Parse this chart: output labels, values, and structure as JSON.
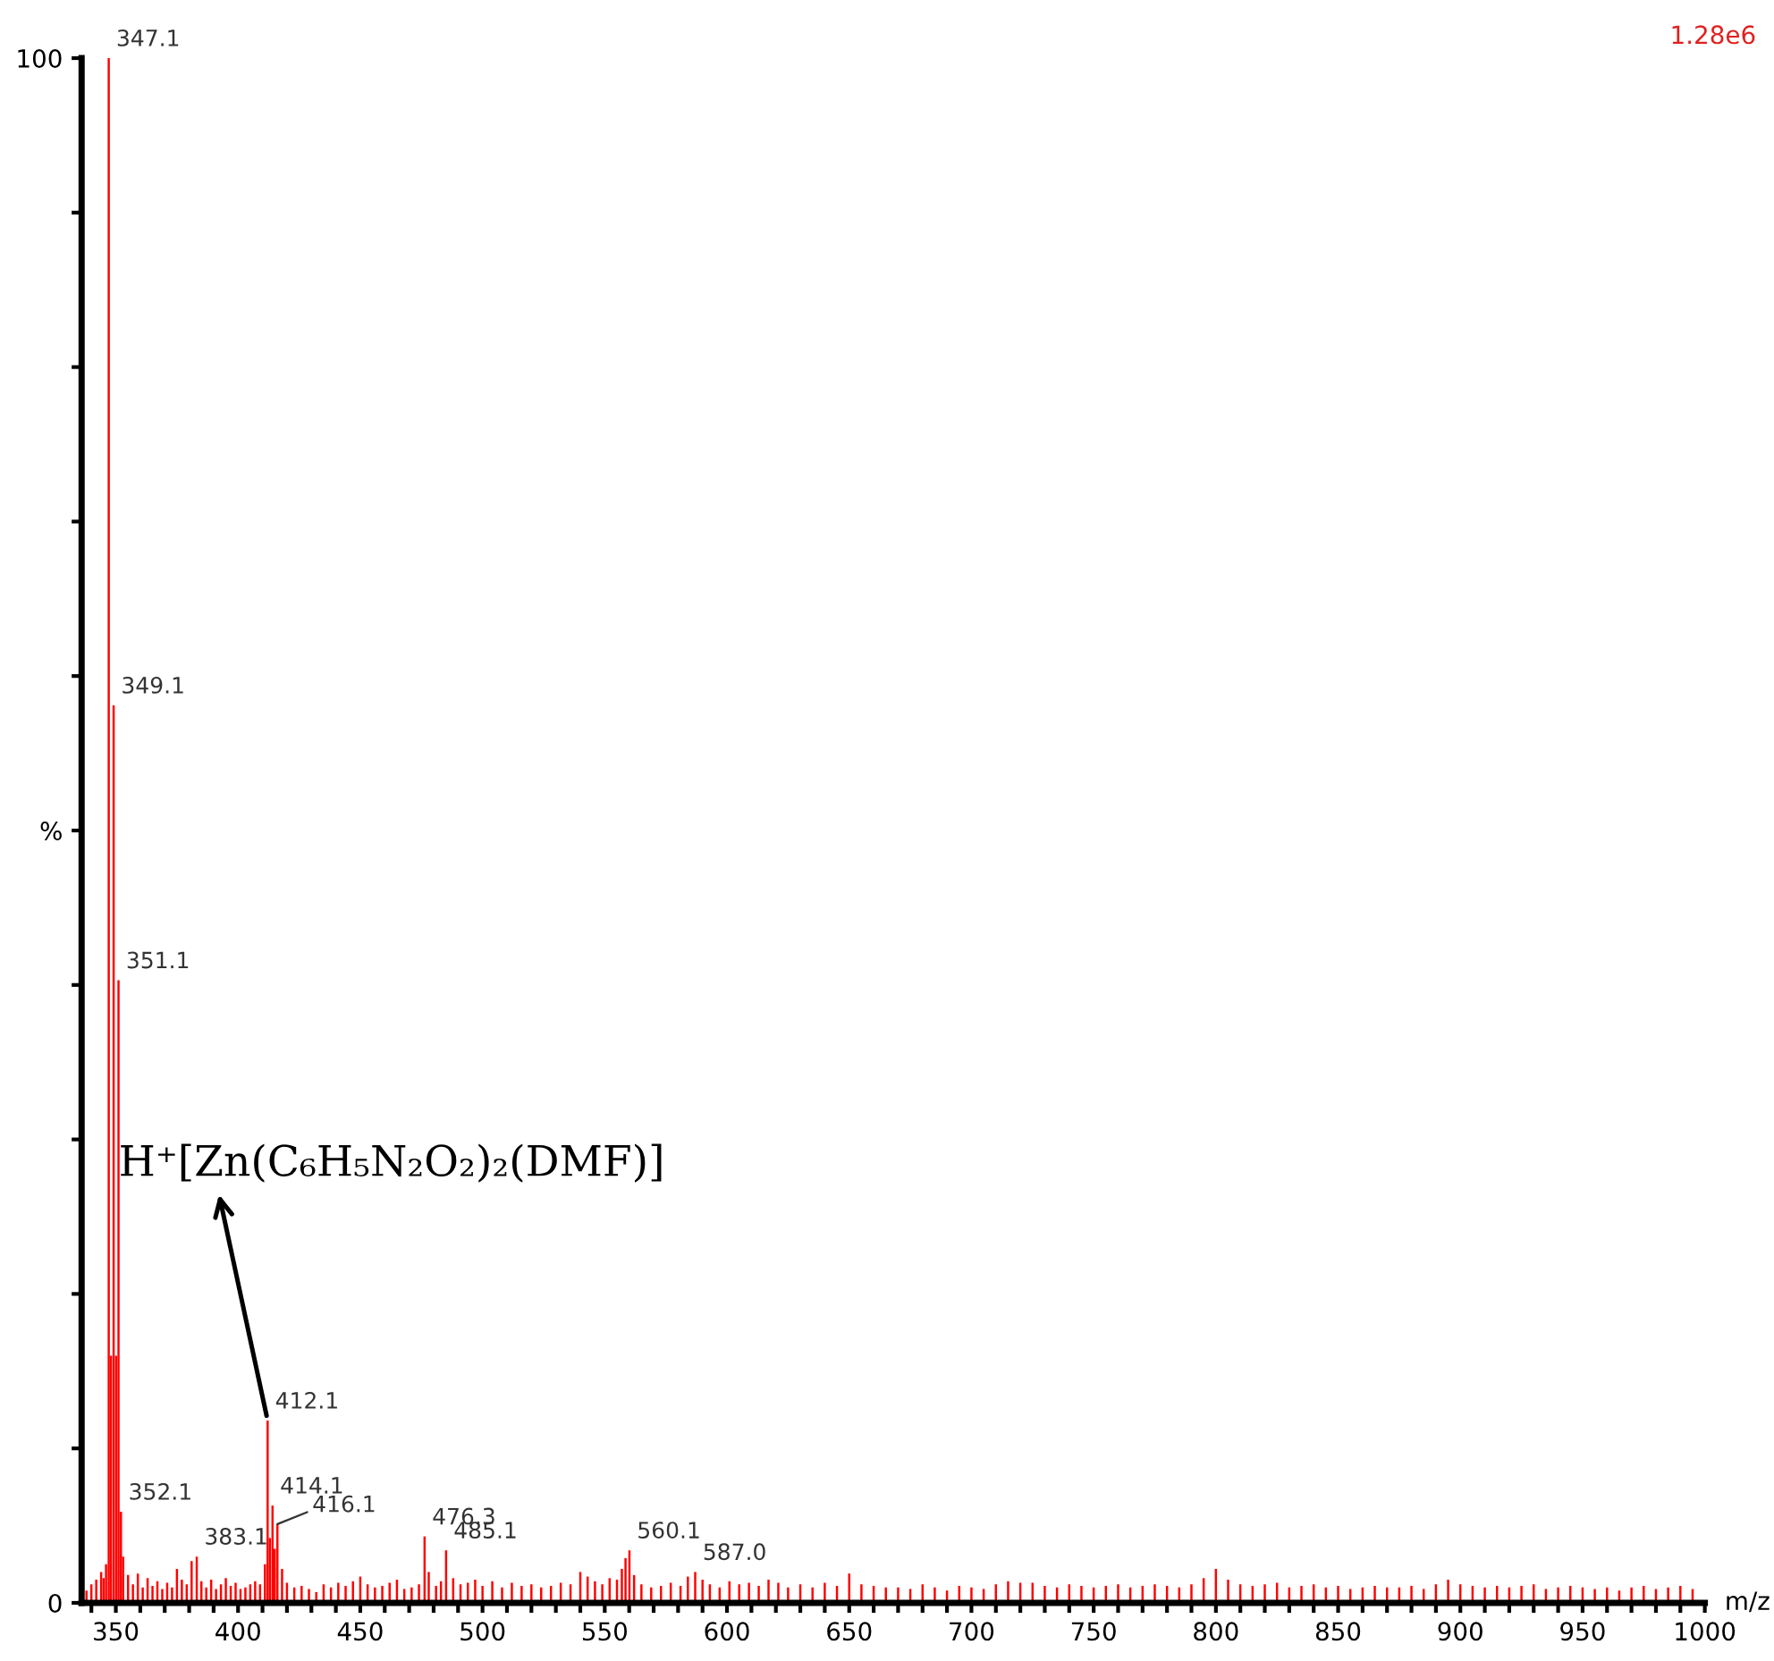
{
  "chart_data": {
    "type": "bar",
    "xlabel": "m/z",
    "x": [
      338,
      340,
      342,
      344,
      345,
      346,
      347.1,
      348,
      349.1,
      350.1,
      351.1,
      352.1,
      353,
      355,
      357,
      359,
      361,
      363,
      365,
      367,
      369,
      371,
      373,
      375,
      377,
      379,
      381,
      383.1,
      385,
      387,
      389,
      391,
      393,
      395,
      397,
      399,
      401,
      403,
      405,
      407,
      409,
      411,
      412.1,
      413,
      414.1,
      415,
      416.1,
      418,
      420,
      423,
      426,
      429,
      432,
      435,
      438,
      441,
      444,
      447,
      450,
      453,
      456,
      459,
      462,
      465,
      468,
      471,
      474,
      476.3,
      478,
      481,
      483,
      485.1,
      488,
      491,
      494,
      497,
      500,
      504,
      508,
      512,
      516,
      520,
      524,
      528,
      532,
      536,
      540,
      543,
      546,
      549,
      552,
      555,
      557,
      558.5,
      560.1,
      562,
      565,
      569,
      573,
      577,
      581,
      584,
      587.0,
      590,
      593,
      597,
      601,
      605,
      609,
      613,
      617,
      621,
      625,
      630,
      635,
      640,
      645,
      650,
      655,
      660,
      665,
      670,
      675,
      680,
      685,
      690,
      695,
      700,
      705,
      710,
      715,
      720,
      725,
      730,
      735,
      740,
      745,
      750,
      755,
      760,
      765,
      770,
      775,
      780,
      785,
      790,
      795,
      800,
      805,
      810,
      815,
      820,
      825,
      830,
      835,
      840,
      845,
      850,
      855,
      860,
      865,
      870,
      875,
      880,
      885,
      890,
      895,
      900,
      905,
      910,
      915,
      920,
      925,
      930,
      935,
      940,
      945,
      950,
      955,
      960,
      965,
      970,
      975,
      980,
      985,
      990,
      995
    ],
    "values": [
      0.8,
      1.2,
      1.5,
      2.0,
      1.6,
      2.5,
      100,
      16,
      58.1,
      16,
      40.3,
      5.9,
      3.0,
      1.8,
      1.2,
      1.9,
      1.0,
      1.6,
      1.1,
      1.4,
      0.9,
      1.3,
      1.0,
      2.2,
      1.5,
      1.2,
      2.7,
      3.0,
      1.4,
      1.0,
      1.5,
      0.9,
      1.2,
      1.6,
      1.1,
      1.3,
      0.9,
      1.0,
      1.2,
      1.4,
      1.2,
      2.5,
      11.8,
      4.2,
      6.3,
      3.5,
      5.1,
      2.2,
      1.3,
      1.0,
      1.1,
      0.9,
      0.7,
      1.2,
      1.0,
      1.3,
      1.1,
      1.4,
      1.7,
      1.2,
      1.0,
      1.1,
      1.3,
      1.5,
      0.9,
      1.0,
      1.2,
      4.3,
      2.0,
      1.1,
      1.4,
      3.4,
      1.6,
      1.2,
      1.3,
      1.5,
      1.1,
      1.4,
      1.0,
      1.3,
      1.1,
      1.2,
      1.0,
      1.1,
      1.3,
      1.2,
      2.0,
      1.7,
      1.4,
      1.2,
      1.6,
      1.5,
      2.2,
      2.9,
      3.4,
      1.8,
      1.2,
      1.0,
      1.1,
      1.3,
      1.1,
      1.7,
      2.0,
      1.5,
      1.2,
      1.0,
      1.4,
      1.2,
      1.3,
      1.1,
      1.5,
      1.3,
      1.0,
      1.2,
      1.0,
      1.3,
      1.1,
      1.9,
      1.2,
      1.1,
      1.0,
      1.0,
      0.9,
      1.2,
      1.0,
      0.8,
      1.1,
      1.0,
      0.9,
      1.2,
      1.4,
      1.3,
      1.3,
      1.1,
      1.0,
      1.2,
      1.1,
      1.0,
      1.1,
      1.2,
      1.0,
      1.1,
      1.2,
      1.1,
      1.0,
      1.2,
      1.6,
      2.2,
      1.5,
      1.2,
      1.1,
      1.2,
      1.3,
      1.0,
      1.1,
      1.2,
      1.0,
      1.1,
      0.9,
      1.0,
      1.1,
      1.0,
      1.0,
      1.1,
      0.9,
      1.2,
      1.5,
      1.2,
      1.1,
      1.0,
      1.1,
      1.0,
      1.1,
      1.2,
      0.9,
      1.0,
      1.1,
      1.0,
      0.9,
      1.0,
      0.8,
      1.0,
      1.1,
      0.9,
      1.0,
      1.1,
      0.9
    ],
    "color": "#ff0000",
    "xlim": [
      336,
      1000
    ],
    "xticks": [
      {
        "value": 340,
        "label": null
      },
      350,
      {
        "value": 360,
        "label": null
      },
      {
        "value": 370,
        "label": null
      },
      {
        "value": 380,
        "label": null
      },
      {
        "value": 390,
        "label": null
      },
      400,
      {
        "value": 410,
        "label": null
      },
      {
        "value": 420,
        "label": null
      },
      {
        "value": 430,
        "label": null
      },
      {
        "value": 440,
        "label": null
      },
      450,
      {
        "value": 460,
        "label": null
      },
      {
        "value": 470,
        "label": null
      },
      {
        "value": 480,
        "label": null
      },
      {
        "value": 490,
        "label": null
      },
      500,
      {
        "value": 510,
        "label": null
      },
      {
        "value": 520,
        "label": null
      },
      {
        "value": 530,
        "label": null
      },
      {
        "value": 540,
        "label": null
      },
      550,
      {
        "value": 560,
        "label": null
      },
      {
        "value": 570,
        "label": null
      },
      {
        "value": 580,
        "label": null
      },
      {
        "value": 590,
        "label": null
      },
      600,
      {
        "value": 610,
        "label": null
      },
      {
        "value": 620,
        "label": null
      },
      {
        "value": 630,
        "label": null
      },
      {
        "value": 640,
        "label": null
      },
      650,
      {
        "value": 660,
        "label": null
      },
      {
        "value": 670,
        "label": null
      },
      {
        "value": 680,
        "label": null
      },
      {
        "value": 690,
        "label": null
      },
      700,
      {
        "value": 710,
        "label": null
      },
      {
        "value": 720,
        "label": null
      },
      {
        "value": 730,
        "label": null
      },
      {
        "value": 740,
        "label": null
      },
      750,
      {
        "value": 760,
        "label": null
      },
      {
        "value": 770,
        "label": null
      },
      {
        "value": 780,
        "label": null
      },
      {
        "value": 790,
        "label": null
      },
      800,
      {
        "value": 810,
        "label": null
      },
      {
        "value": 820,
        "label": null
      },
      {
        "value": 830,
        "label": null
      },
      {
        "value": 840,
        "label": null
      },
      850,
      {
        "value": 860,
        "label": null
      },
      {
        "value": 870,
        "label": null
      },
      {
        "value": 880,
        "label": null
      },
      {
        "value": 890,
        "label": null
      },
      900,
      {
        "value": 910,
        "label": null
      },
      {
        "value": 920,
        "label": null
      },
      {
        "value": 930,
        "label": null
      },
      {
        "value": 940,
        "label": null
      },
      950,
      {
        "value": 960,
        "label": null
      },
      {
        "value": 970,
        "label": null
      },
      {
        "value": 980,
        "label": null
      },
      {
        "value": 990,
        "label": null
      },
      1000
    ],
    "ylim": [
      0,
      100
    ],
    "yticks": [
      0,
      {
        "value": 10,
        "label": null
      },
      {
        "value": 20,
        "label": null
      },
      {
        "value": 30,
        "label": null
      },
      {
        "value": 40,
        "label": null
      },
      {
        "value": 50,
        "label": "%"
      },
      {
        "value": 60,
        "label": null
      },
      {
        "value": 70,
        "label": null
      },
      {
        "value": 80,
        "label": null
      },
      {
        "value": 90,
        "label": null
      },
      100
    ],
    "grid": false,
    "legend": false,
    "annotations": [
      {
        "text": "H⁺[Zn(C₆H₅N₂O₂)₂(DMF)]",
        "x": 412.1,
        "y": 11.8
      },
      "1.28e6",
      {
        "text": "347.1",
        "x": 347.1,
        "y": 100
      },
      {
        "text": "349.1",
        "x": 349.1,
        "y": 58.1
      },
      {
        "text": "351.1",
        "x": 351.1,
        "y": 40.3
      },
      {
        "text": "352.1",
        "x": 352.1,
        "y": 5.9
      },
      {
        "text": "383.1",
        "x": 383.1,
        "y": 3.0
      },
      {
        "text": "412.1",
        "x": 412.1,
        "y": 11.8
      },
      {
        "text": "414.1",
        "x": 414.1,
        "y": 6.3
      },
      {
        "text": "416.1",
        "x": 416.1,
        "y": 5.1
      },
      {
        "text": "476.3",
        "x": 476.3,
        "y": 4.3
      },
      {
        "text": "485.1",
        "x": 485.1,
        "y": 3.4
      },
      {
        "text": "560.1",
        "x": 560.1,
        "y": 3.4
      },
      {
        "text": "587.0",
        "x": 587.0,
        "y": 2.0
      }
    ]
  }
}
